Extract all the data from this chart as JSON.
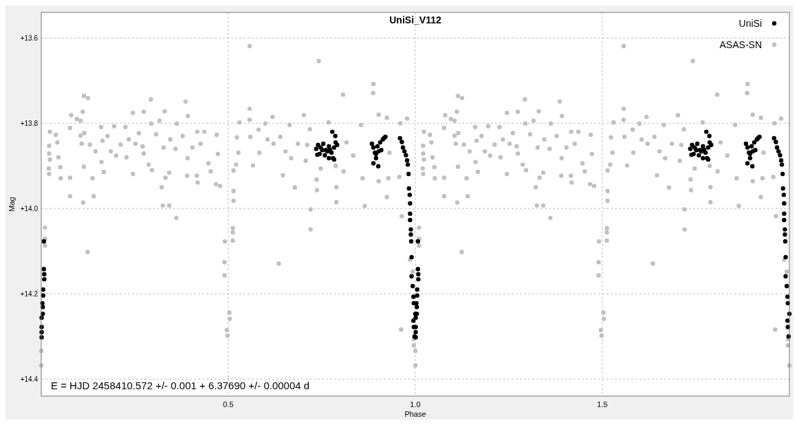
{
  "chart_data": {
    "type": "scatter",
    "title": "UniSi_V112",
    "xlabel": "Phase",
    "ylabel": "Mag",
    "annotations": [
      "E = HJD 2458410.572 +/- 0.001 + 6.37690 +/- 0.00004 d"
    ],
    "xlim": [
      0,
      2
    ],
    "xticks": [
      0.5,
      {
        "value": 1,
        "label": "1.0"
      },
      1.5
    ],
    "ylim": [
      14.44,
      13.54
    ],
    "yticks": [
      {
        "value": 13.6,
        "label": "+13.6"
      },
      {
        "value": 13.8,
        "label": "+13.8"
      },
      {
        "value": 14.0,
        "label": "+14.0"
      },
      {
        "value": 14.2,
        "label": "+14.2"
      },
      {
        "value": 14.4,
        "label": "+14.4"
      }
    ],
    "grid": true,
    "legend": "top right",
    "marker": "circle",
    "series": [
      {
        "name": "UniSi",
        "color": "#000000",
        "x": [
          0.007,
          0.007,
          0.008,
          0.008,
          0.005,
          0.005,
          0.003,
          0.004,
          0.004,
          0.001,
          0.001,
          0.001,
          0.001,
          0.735,
          0.74,
          0.747,
          0.754,
          0.761,
          0.769,
          0.776,
          0.78,
          0.783,
          0.787,
          0.786,
          0.778,
          0.791,
          0.744,
          0.758,
          0.769,
          0.738,
          0.751,
          0.765,
          0.772,
          0.783,
          0.884,
          0.888,
          0.892,
          0.895,
          0.888,
          0.901,
          0.899,
          0.906,
          0.909,
          0.913,
          0.916,
          0.92,
          0.902,
          0.895,
          0.959,
          0.964,
          0.967,
          0.971,
          0.975,
          0.978,
          0.98,
          0.982,
          0.983,
          0.985,
          0.986,
          0.986,
          0.986,
          0.988,
          0.988,
          0.989,
          0.99,
          0.99,
          0.993,
          0.995,
          0.996,
          0.995,
          0.996,
          0.998,
          1.0,
          1.007,
          1.007,
          1.008,
          1.008,
          1.005,
          1.005,
          1.003,
          1.004,
          1.004,
          1.001,
          1.001,
          1.001,
          1.001,
          1.735,
          1.74,
          1.747,
          1.754,
          1.761,
          1.769,
          1.776,
          1.78,
          1.783,
          1.787,
          1.786,
          1.778,
          1.791,
          1.744,
          1.758,
          1.769,
          1.738,
          1.751,
          1.765,
          1.772,
          1.783,
          1.884,
          1.888,
          1.892,
          1.895,
          1.888,
          1.901,
          1.899,
          1.906,
          1.909,
          1.913,
          1.916,
          1.92,
          1.902,
          1.895,
          1.959,
          1.964,
          1.967,
          1.971,
          1.975,
          1.978,
          1.98,
          1.982,
          1.983,
          1.985,
          1.986,
          1.986,
          1.986,
          1.988,
          1.988,
          1.989,
          1.99,
          1.99,
          1.993,
          1.995,
          1.996,
          1.995,
          1.996,
          1.998,
          2.0
        ],
        "values": [
          14.077,
          14.142,
          14.154,
          14.166,
          14.19,
          14.204,
          14.222,
          14.231,
          14.247,
          14.256,
          14.278,
          14.29,
          14.302,
          13.86,
          13.851,
          13.857,
          13.848,
          13.863,
          13.854,
          13.869,
          13.882,
          13.857,
          13.845,
          13.83,
          13.82,
          13.851,
          13.872,
          13.875,
          13.882,
          13.874,
          13.863,
          13.866,
          13.862,
          13.885,
          13.848,
          13.857,
          13.869,
          13.882,
          13.894,
          13.901,
          13.854,
          13.845,
          13.863,
          13.838,
          13.835,
          13.832,
          13.866,
          13.872,
          13.835,
          13.844,
          13.857,
          13.866,
          13.875,
          13.887,
          13.897,
          13.919,
          13.953,
          13.968,
          13.988,
          14.012,
          14.027,
          14.049,
          14.061,
          14.077,
          14.114,
          14.159,
          14.182,
          14.207,
          14.222,
          14.263,
          14.278,
          14.3,
          14.247,
          14.077,
          14.142,
          14.154,
          14.166,
          14.19,
          14.204,
          14.222,
          14.231,
          14.247,
          14.256,
          14.278,
          14.29,
          14.302,
          13.86,
          13.851,
          13.857,
          13.848,
          13.863,
          13.854,
          13.869,
          13.882,
          13.857,
          13.845,
          13.83,
          13.82,
          13.851,
          13.872,
          13.875,
          13.882,
          13.874,
          13.863,
          13.866,
          13.862,
          13.885,
          13.848,
          13.857,
          13.869,
          13.882,
          13.894,
          13.901,
          13.854,
          13.845,
          13.863,
          13.838,
          13.835,
          13.832,
          13.866,
          13.872,
          13.835,
          13.844,
          13.857,
          13.866,
          13.875,
          13.887,
          13.897,
          13.919,
          13.953,
          13.968,
          13.988,
          14.012,
          14.027,
          14.049,
          14.061,
          14.077,
          14.114,
          14.159,
          14.182,
          14.207,
          14.222,
          14.263,
          14.278,
          14.3,
          14.247
        ]
      },
      {
        "name": "ASAS-SN",
        "color": "#c0c0c0",
        "x": [
          0.023,
          0.021,
          0.021,
          0.023,
          0.02,
          0.021,
          0.039,
          0.043,
          0.046,
          0.051,
          0.052,
          0.077,
          0.08,
          0.077,
          0.077,
          0.095,
          0.105,
          0.105,
          0.108,
          0.114,
          0.125,
          0.111,
          0.115,
          0.114,
          0.112,
          0.124,
          0.137,
          0.14,
          0.13,
          0.145,
          0.16,
          0.164,
          0.161,
          0.167,
          0.177,
          0.186,
          0.195,
          0.2,
          0.212,
          0.225,
          0.228,
          0.245,
          0.245,
          0.234,
          0.252,
          0.261,
          0.274,
          0.271,
          0.274,
          0.287,
          0.293,
          0.294,
          0.296,
          0.307,
          0.316,
          0.322,
          0.325,
          0.33,
          0.332,
          0.327,
          0.342,
          0.342,
          0.345,
          0.361,
          0.359,
          0.362,
          0.378,
          0.386,
          0.392,
          0.39,
          0.391,
          0.404,
          0.416,
          0.418,
          0.417,
          0.426,
          0.436,
          0.447,
          0.453,
          0.469,
          0.472,
          0.467,
          0.478,
          0.491,
          0.49,
          0.49,
          0.496,
          0.498,
          0.503,
          0.504,
          0.512,
          0.512,
          0.512,
          0.514,
          0.514,
          0.514,
          0.521,
          0.523,
          0.53,
          0.527,
          0.557,
          0.557,
          0.557,
          0.559,
          0.566,
          0.581,
          0.583,
          0.599,
          0.605,
          0.618,
          0.621,
          0.635,
          0.639,
          0.646,
          0.653,
          0.664,
          0.668,
          0.678,
          0.686,
          0.702,
          0.707,
          0.711,
          0.72,
          0.72,
          0.718,
          0.736,
          0.737,
          0.742,
          0.747,
          0.768,
          0.789,
          0.789,
          0.787,
          0.807,
          0.808,
          0.816,
          0.834,
          0.859,
          0.865,
          0.855,
          0.888,
          0.887,
          0.902,
          0.902,
          0.924,
          0.928,
          0.924,
          0.931,
          0.957,
          0.964,
          0.962,
          0.96,
          0.978,
          0.986,
          0.993,
          0.996,
          1.0,
          0.996,
          0.0,
          0.0,
          0.01,
          0.01,
          0.01,
          1.023,
          1.021,
          1.021,
          1.023,
          1.02,
          1.021,
          1.039,
          1.043,
          1.046,
          1.051,
          1.052,
          1.077,
          1.08,
          1.077,
          1.077,
          1.095,
          1.105,
          1.105,
          1.108,
          1.114,
          1.125,
          1.111,
          1.115,
          1.114,
          1.112,
          1.124,
          1.137,
          1.14,
          1.13,
          1.145,
          1.16,
          1.164,
          1.161,
          1.167,
          1.177,
          1.186,
          1.195,
          1.2,
          1.212,
          1.225,
          1.228,
          1.245,
          1.245,
          1.234,
          1.252,
          1.261,
          1.274,
          1.271,
          1.274,
          1.287,
          1.293,
          1.294,
          1.296,
          1.307,
          1.316,
          1.322,
          1.325,
          1.33,
          1.332,
          1.327,
          1.342,
          1.342,
          1.345,
          1.361,
          1.359,
          1.362,
          1.378,
          1.386,
          1.392,
          1.39,
          1.391,
          1.404,
          1.416,
          1.418,
          1.417,
          1.426,
          1.436,
          1.447,
          1.453,
          1.469,
          1.472,
          1.467,
          1.478,
          1.491,
          1.49,
          1.49,
          1.496,
          1.498,
          1.503,
          1.504,
          1.512,
          1.512,
          1.512,
          1.514,
          1.514,
          1.514,
          1.521,
          1.523,
          1.53,
          1.527,
          1.557,
          1.557,
          1.557,
          1.559,
          1.566,
          1.581,
          1.583,
          1.599,
          1.605,
          1.618,
          1.621,
          1.635,
          1.639,
          1.646,
          1.653,
          1.664,
          1.668,
          1.678,
          1.686,
          1.702,
          1.707,
          1.711,
          1.72,
          1.72,
          1.718,
          1.736,
          1.737,
          1.742,
          1.747,
          1.768,
          1.789,
          1.789,
          1.787,
          1.807,
          1.808,
          1.816,
          1.834,
          1.859,
          1.865,
          1.855,
          1.888,
          1.887,
          1.902,
          1.902,
          1.924,
          1.928,
          1.924,
          1.931,
          1.957,
          1.964,
          1.962,
          1.96,
          1.978,
          1.986,
          1.993,
          1.996,
          2.0,
          1.996,
          1.0,
          1.0,
          1.01,
          1.01,
          1.01
        ],
        "values": [
          13.82,
          13.853,
          13.871,
          13.885,
          13.906,
          13.919,
          13.827,
          13.845,
          13.88,
          13.903,
          13.929,
          13.811,
          13.781,
          13.928,
          13.971,
          13.79,
          13.794,
          13.829,
          13.848,
          13.736,
          13.741,
          13.773,
          13.823,
          13.902,
          13.986,
          14.102,
          13.929,
          13.971,
          13.85,
          13.866,
          13.809,
          13.841,
          13.891,
          13.914,
          13.83,
          13.866,
          13.807,
          13.876,
          13.85,
          13.809,
          13.88,
          13.776,
          13.919,
          13.838,
          13.848,
          13.823,
          13.773,
          13.854,
          13.871,
          13.897,
          13.744,
          13.801,
          13.91,
          13.826,
          13.794,
          13.95,
          13.993,
          13.772,
          13.928,
          13.857,
          13.993,
          13.916,
          13.838,
          14.022,
          13.86,
          13.801,
          13.83,
          13.749,
          13.783,
          13.923,
          13.882,
          13.857,
          13.923,
          13.939,
          13.82,
          13.848,
          13.82,
          13.894,
          13.913,
          13.827,
          13.872,
          13.943,
          13.947,
          14.077,
          14.126,
          14.157,
          14.285,
          14.298,
          14.244,
          14.259,
          14.046,
          14.056,
          14.075,
          13.959,
          13.982,
          13.911,
          13.897,
          13.833,
          13.798,
          13.869,
          13.619,
          13.766,
          13.792,
          13.832,
          13.899,
          13.815,
          13.869,
          13.801,
          13.838,
          13.785,
          13.848,
          14.129,
          13.832,
          13.922,
          13.866,
          13.804,
          13.882,
          13.951,
          13.848,
          13.781,
          13.888,
          13.851,
          14.002,
          14.049,
          13.814,
          13.932,
          13.957,
          13.654,
          13.906,
          13.798,
          13.95,
          13.985,
          13.9,
          13.733,
          13.913,
          13.845,
          13.876,
          13.929,
          13.994,
          13.804,
          13.708,
          13.729,
          13.78,
          13.936,
          13.787,
          13.929,
          13.973,
          13.869,
          13.926,
          14.018,
          14.284,
          13.8,
          13.789,
          14.12,
          14.148,
          14.321,
          14.368,
          14.306,
          14.334,
          14.368,
          14.045,
          14.071,
          14.087,
          13.82,
          13.853,
          13.871,
          13.885,
          13.906,
          13.919,
          13.827,
          13.845,
          13.88,
          13.903,
          13.929,
          13.811,
          13.781,
          13.928,
          13.971,
          13.79,
          13.794,
          13.829,
          13.848,
          13.736,
          13.741,
          13.773,
          13.823,
          13.902,
          13.986,
          14.102,
          13.929,
          13.971,
          13.85,
          13.866,
          13.809,
          13.841,
          13.891,
          13.914,
          13.83,
          13.866,
          13.807,
          13.876,
          13.85,
          13.809,
          13.88,
          13.776,
          13.919,
          13.838,
          13.848,
          13.823,
          13.773,
          13.854,
          13.871,
          13.897,
          13.744,
          13.801,
          13.91,
          13.826,
          13.794,
          13.95,
          13.993,
          13.772,
          13.928,
          13.857,
          13.993,
          13.916,
          13.838,
          14.022,
          13.86,
          13.801,
          13.83,
          13.749,
          13.783,
          13.923,
          13.882,
          13.857,
          13.923,
          13.939,
          13.82,
          13.848,
          13.82,
          13.894,
          13.913,
          13.827,
          13.872,
          13.943,
          13.947,
          14.077,
          14.126,
          14.157,
          14.285,
          14.298,
          14.244,
          14.259,
          14.046,
          14.056,
          14.075,
          13.959,
          13.982,
          13.911,
          13.897,
          13.833,
          13.798,
          13.869,
          13.619,
          13.766,
          13.792,
          13.832,
          13.899,
          13.815,
          13.869,
          13.801,
          13.838,
          13.785,
          13.848,
          14.129,
          13.832,
          13.922,
          13.866,
          13.804,
          13.882,
          13.951,
          13.848,
          13.781,
          13.888,
          13.851,
          14.002,
          14.049,
          13.814,
          13.932,
          13.957,
          13.654,
          13.906,
          13.798,
          13.95,
          13.985,
          13.9,
          13.733,
          13.913,
          13.845,
          13.876,
          13.929,
          13.994,
          13.804,
          13.708,
          13.729,
          13.78,
          13.936,
          13.787,
          13.929,
          13.973,
          13.869,
          13.926,
          14.018,
          14.284,
          13.8,
          13.789,
          14.12,
          14.148,
          14.321,
          14.368,
          14.306,
          14.334,
          14.368,
          14.045,
          14.071,
          14.087
        ]
      }
    ]
  }
}
